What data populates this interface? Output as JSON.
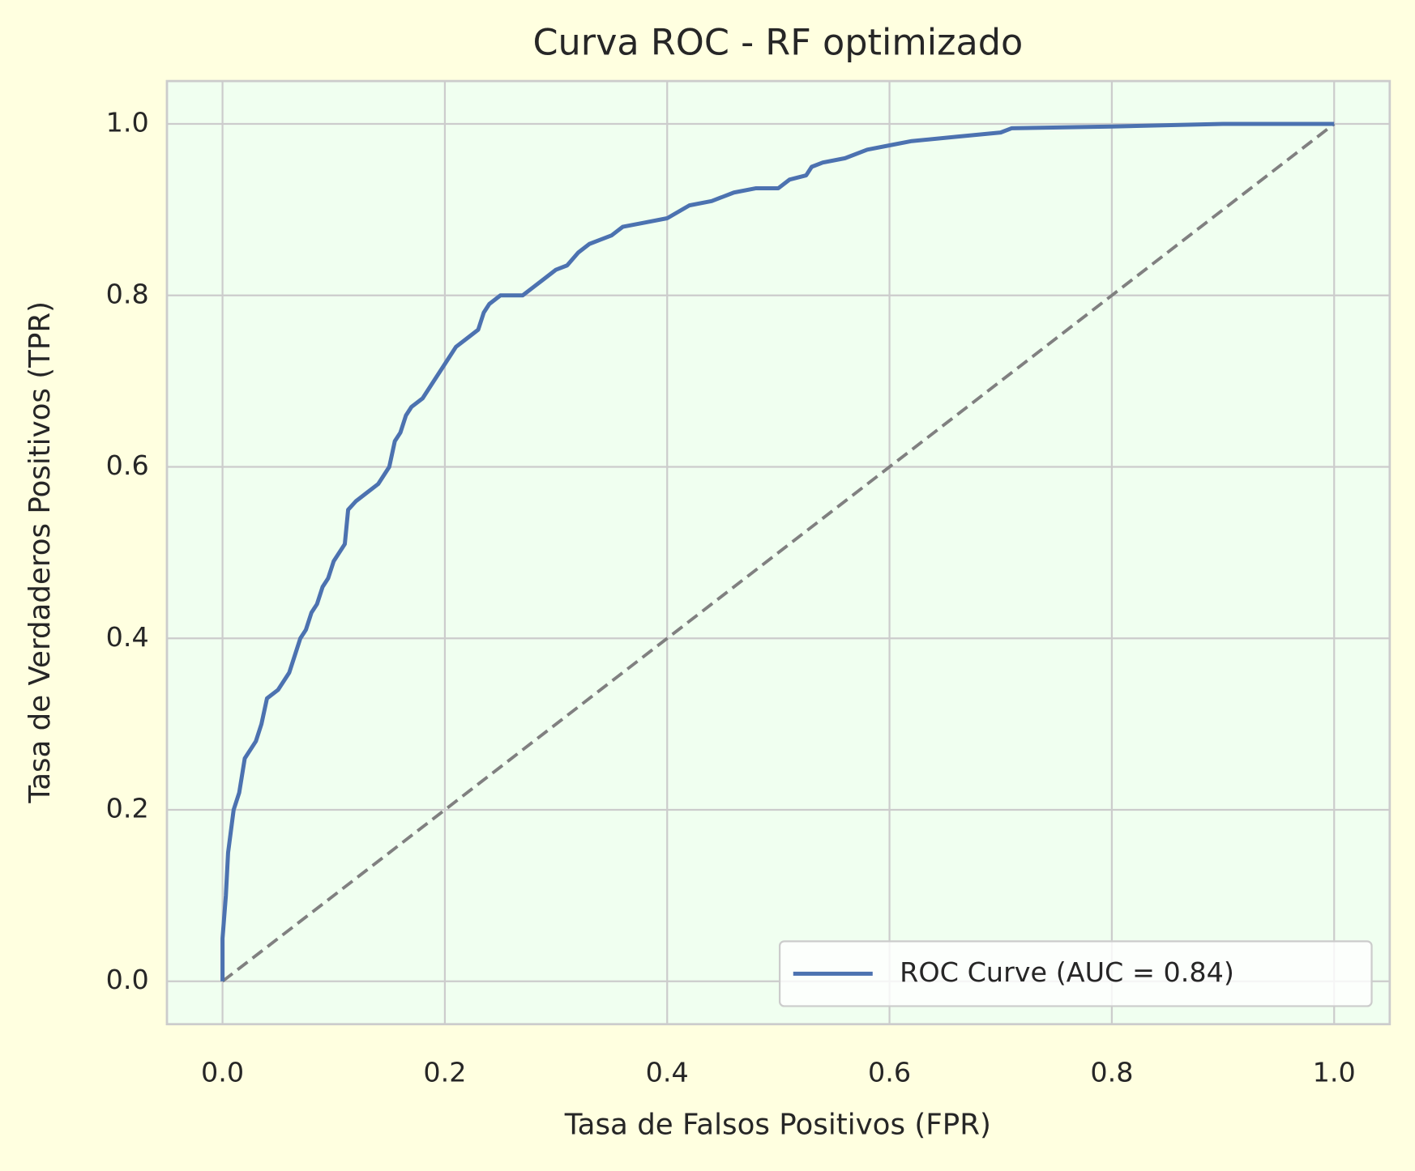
{
  "chart_data": {
    "type": "line",
    "title": "Curva ROC - RF optimizado",
    "x_label": "Tasa de Falsos Positivos (FPR)",
    "y_label": "Tasa de Verdaderos Positivos (TPR)",
    "xlim": [
      -0.05,
      1.05
    ],
    "ylim": [
      -0.05,
      1.05
    ],
    "xticks": [
      {
        "value": 0,
        "label": "0.0"
      },
      0.2,
      0.4,
      0.6,
      0.8,
      {
        "value": 1,
        "label": "1.0"
      }
    ],
    "yticks": [
      {
        "value": 0,
        "label": "0.0"
      },
      0.2,
      0.4,
      0.6,
      0.8,
      {
        "value": 1,
        "label": "1.0"
      }
    ],
    "grid": true,
    "legend_position": "lower right",
    "background": "#f0fff0",
    "series": [
      {
        "name": "ROC Curve (AUC = 0.84)",
        "color": "#4c72b0",
        "linestyle": "solid",
        "x": [
          0,
          0,
          0.003,
          0.005,
          0.01,
          0.015,
          0.02,
          0.03,
          0.035,
          0.04,
          0.05,
          0.06,
          0.065,
          0.07,
          0.075,
          0.08,
          0.085,
          0.09,
          0.095,
          0.1,
          0.11,
          0.113,
          0.12,
          0.13,
          0.14,
          0.15,
          0.155,
          0.16,
          0.165,
          0.17,
          0.18,
          0.19,
          0.2,
          0.21,
          0.22,
          0.23,
          0.235,
          0.24,
          0.25,
          0.27,
          0.28,
          0.29,
          0.3,
          0.31,
          0.32,
          0.33,
          0.34,
          0.35,
          0.36,
          0.38,
          0.4,
          0.42,
          0.44,
          0.46,
          0.48,
          0.5,
          0.51,
          0.525,
          0.53,
          0.54,
          0.56,
          0.58,
          0.6,
          0.62,
          0.66,
          0.7,
          0.71,
          0.8,
          0.9,
          1
        ],
        "values": [
          0,
          0.05,
          0.1,
          0.15,
          0.2,
          0.22,
          0.26,
          0.28,
          0.3,
          0.33,
          0.34,
          0.36,
          0.38,
          0.4,
          0.41,
          0.43,
          0.44,
          0.46,
          0.47,
          0.49,
          0.51,
          0.55,
          0.56,
          0.57,
          0.58,
          0.6,
          0.63,
          0.64,
          0.66,
          0.67,
          0.68,
          0.7,
          0.72,
          0.74,
          0.75,
          0.76,
          0.78,
          0.79,
          0.8,
          0.8,
          0.81,
          0.82,
          0.83,
          0.835,
          0.85,
          0.86,
          0.865,
          0.87,
          0.88,
          0.885,
          0.89,
          0.905,
          0.91,
          0.92,
          0.925,
          0.925,
          0.935,
          0.94,
          0.95,
          0.955,
          0.96,
          0.97,
          0.975,
          0.98,
          0.985,
          0.99,
          0.995,
          0.997,
          1,
          1
        ]
      },
      {
        "color": "#808080",
        "linestyle": "dashed",
        "x": [
          0,
          1
        ],
        "values": [
          0,
          1
        ]
      }
    ]
  }
}
